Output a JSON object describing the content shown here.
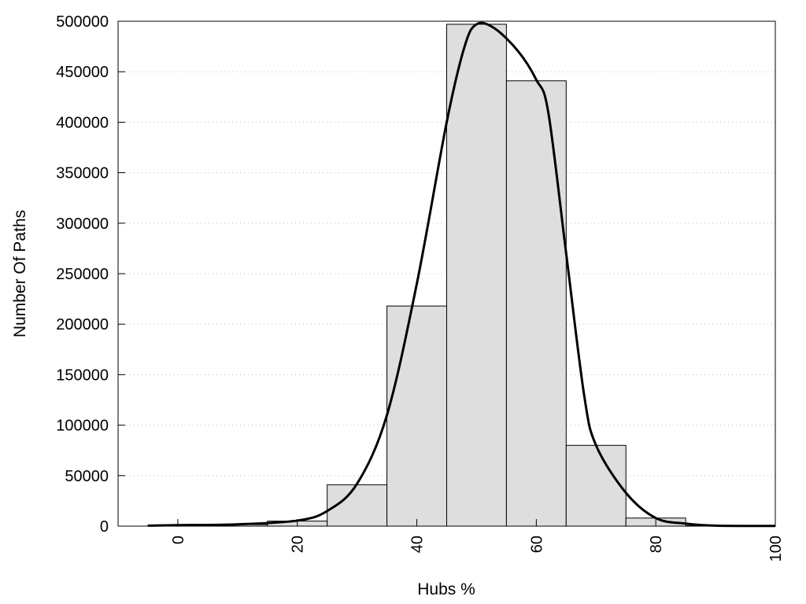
{
  "chart_data": {
    "type": "bar",
    "title": "",
    "xlabel": "Hubs %",
    "ylabel": "Number Of Paths",
    "xlim": [
      -10,
      100
    ],
    "ylim": [
      0,
      500000
    ],
    "xticks": [
      0,
      20,
      40,
      60,
      80,
      100
    ],
    "yticks": [
      0,
      50000,
      100000,
      150000,
      200000,
      250000,
      300000,
      350000,
      400000,
      450000,
      500000
    ],
    "grid": "horizontal dotted",
    "bin_width": 10,
    "bars": {
      "centers": [
        0,
        10,
        20,
        30,
        40,
        50,
        60,
        70,
        80,
        90,
        100
      ],
      "values": [
        1000,
        1500,
        5000,
        41000,
        218000,
        497000,
        441000,
        80000,
        8000,
        500,
        300
      ],
      "color": "#dedede"
    },
    "curve": {
      "x": [
        -5,
        0,
        10,
        20,
        25,
        30,
        35,
        40,
        45,
        48,
        50,
        53,
        57,
        60,
        62,
        65,
        68,
        70,
        75,
        80,
        85,
        90,
        100
      ],
      "y": [
        500,
        1000,
        1800,
        5500,
        15000,
        42000,
        110000,
        240000,
        400000,
        475000,
        497000,
        493000,
        470000,
        442000,
        410000,
        270000,
        130000,
        80000,
        33000,
        8000,
        2500,
        500,
        200
      ],
      "color": "#000000"
    }
  }
}
